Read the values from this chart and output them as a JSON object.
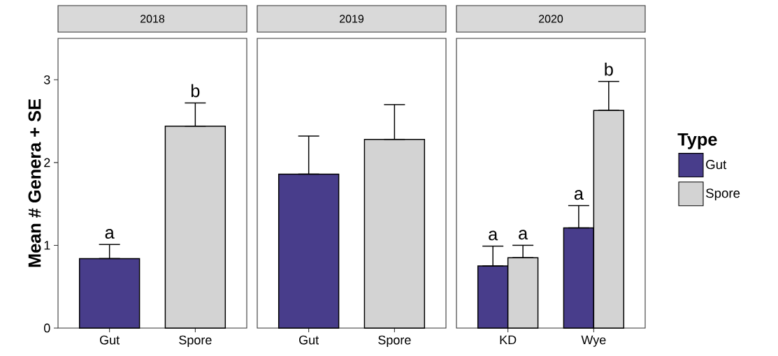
{
  "chart_data": [
    {
      "type": "bar",
      "title": "2018",
      "ylabel": "Mean # Genera + SE",
      "categories": [
        "Gut",
        "Spore"
      ],
      "values": [
        0.84,
        2.44
      ],
      "colors": [
        "#483d8b",
        "#d3d3d3"
      ],
      "errors": [
        [
          0.84,
          1.01
        ],
        [
          2.44,
          2.72
        ]
      ],
      "value_labels": [
        "a",
        "b"
      ],
      "ylim": [
        0,
        3.5
      ],
      "yticks": [
        0,
        1,
        2,
        3
      ]
    },
    {
      "type": "bar",
      "title": "2019",
      "categories": [
        "Gut",
        "Spore"
      ],
      "values": [
        1.86,
        2.28
      ],
      "colors": [
        "#483d8b",
        "#d3d3d3"
      ],
      "errors": [
        [
          1.86,
          2.32
        ],
        [
          2.28,
          2.7
        ]
      ],
      "ylim": [
        0,
        3.5
      ],
      "yticks": [
        0,
        1,
        2,
        3
      ],
      "tick_labels": "x"
    },
    {
      "type": "bar",
      "title": "2020",
      "categories": [
        "KD",
        "Wye"
      ],
      "legend_title": "Type",
      "legend": "right",
      "ylim": [
        0,
        3.5
      ],
      "yticks": [
        0,
        1,
        2,
        3
      ],
      "tick_labels": "x",
      "series": [
        {
          "name": "Gut",
          "color": "#483d8b",
          "values": [
            0.75,
            1.21
          ],
          "errors": [
            [
              0.75,
              0.99
            ],
            [
              1.21,
              1.48
            ]
          ],
          "value_labels": [
            "a",
            "a"
          ]
        },
        {
          "name": "Spore",
          "color": "#d3d3d3",
          "values": [
            0.85,
            2.63
          ],
          "errors": [
            [
              0.85,
              1.0
            ],
            [
              2.63,
              2.98
            ]
          ],
          "value_labels": [
            "a",
            "b"
          ]
        }
      ]
    }
  ]
}
